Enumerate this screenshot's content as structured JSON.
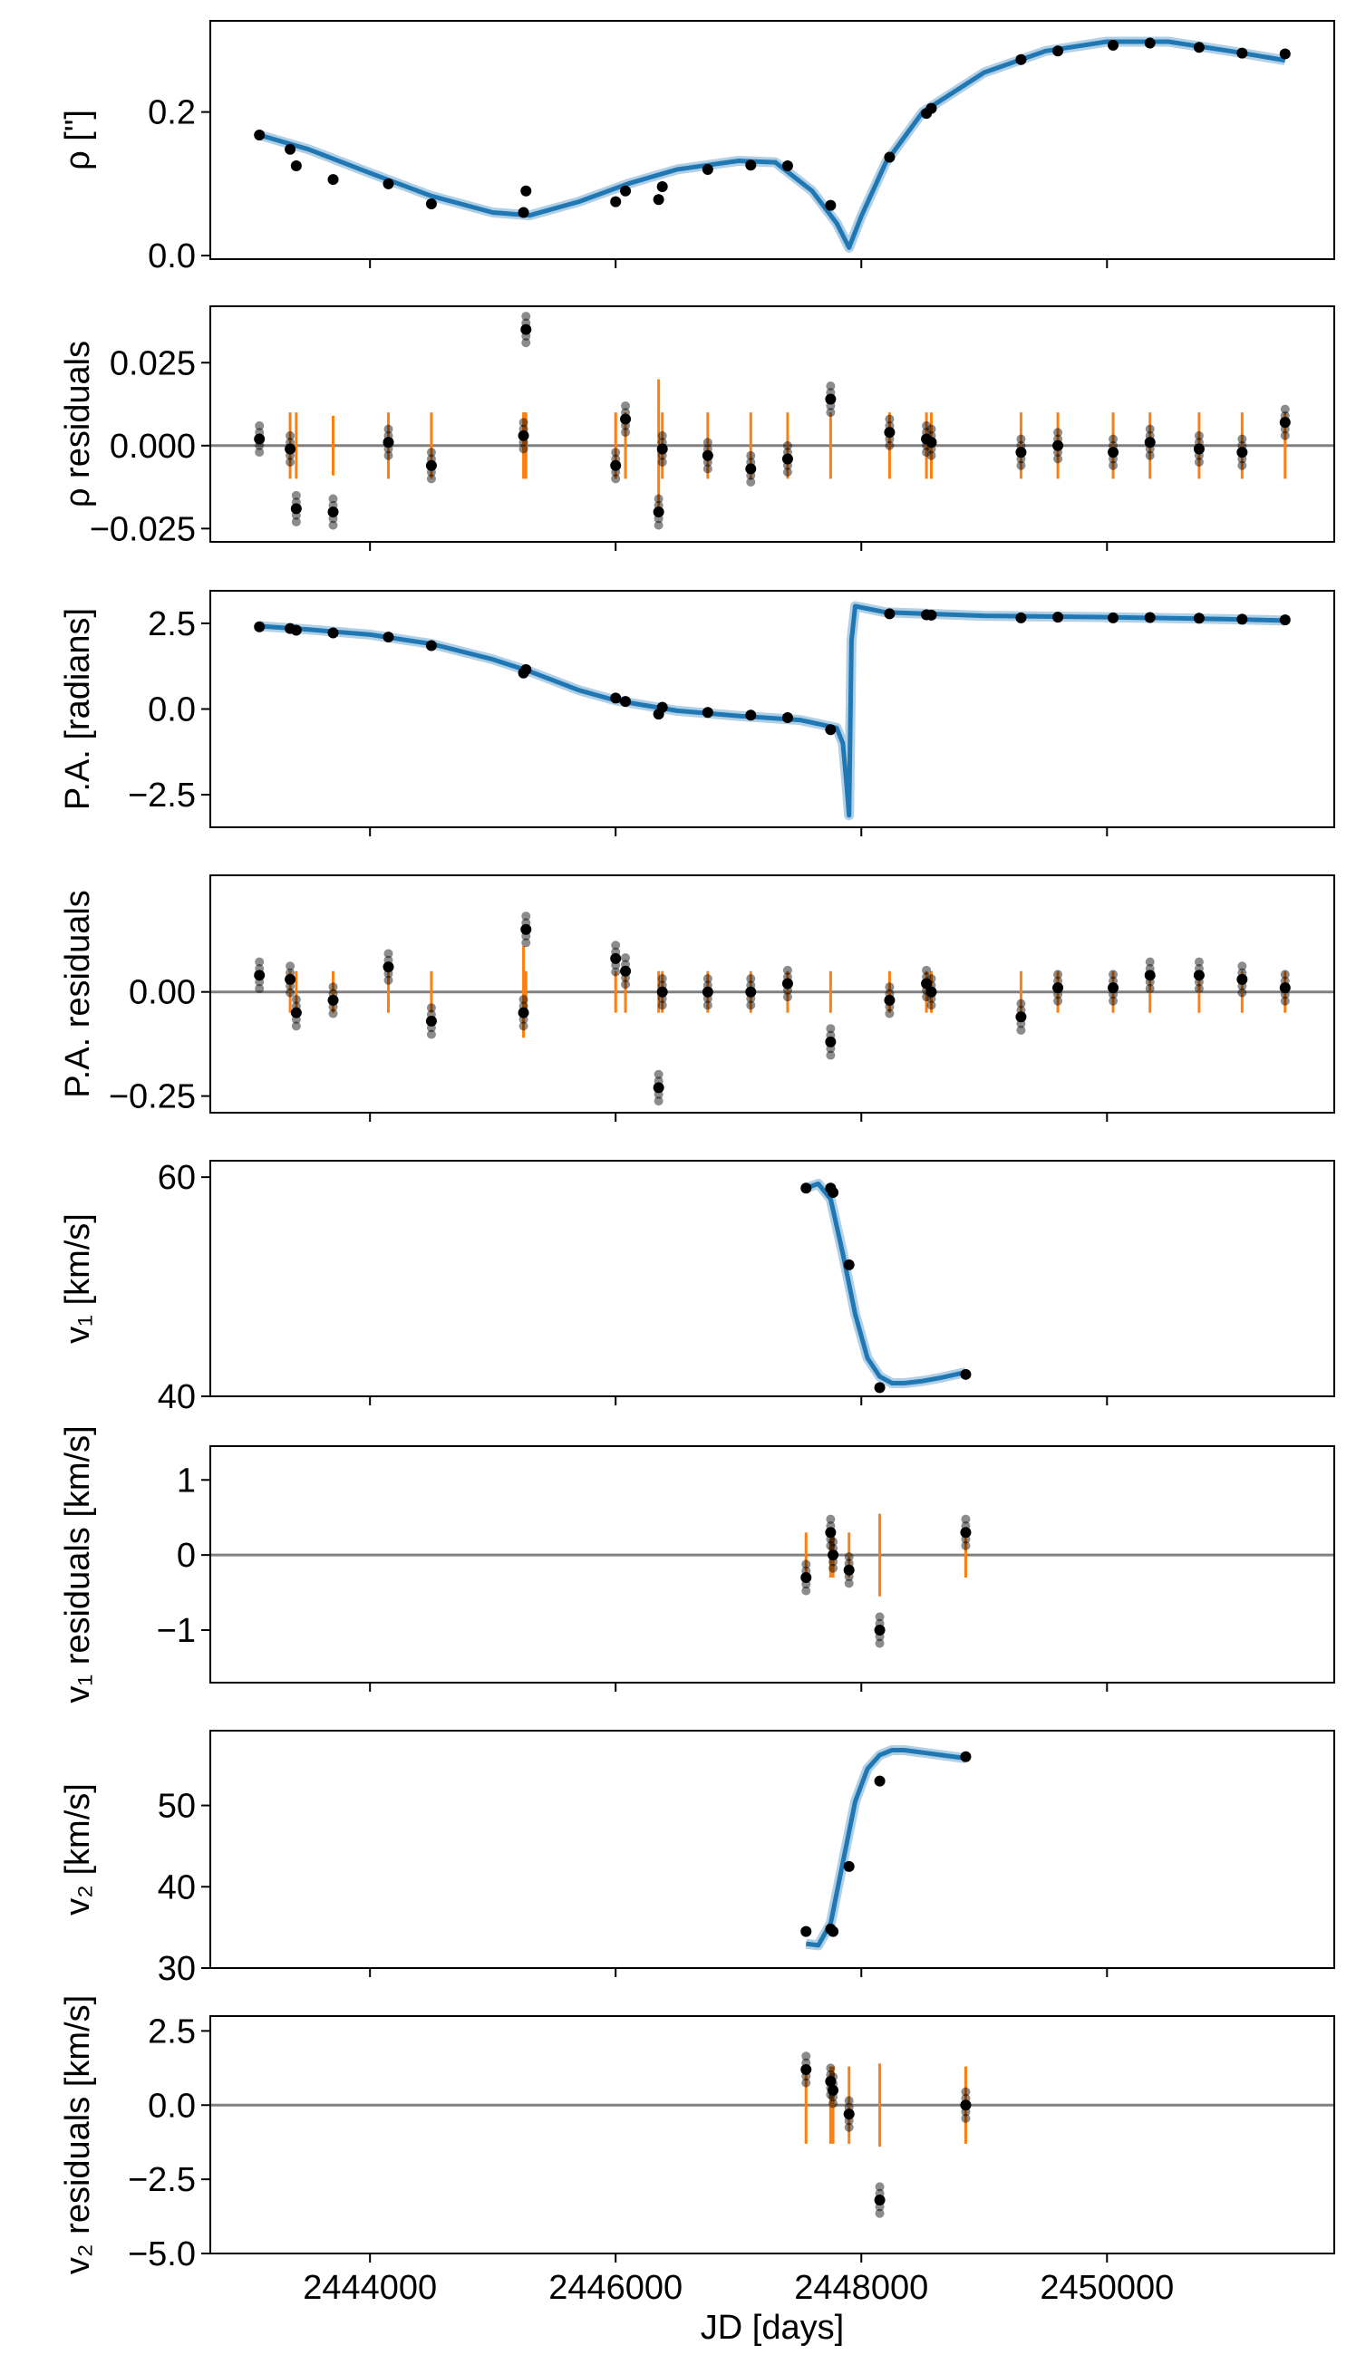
{
  "chart_data": [
    {
      "type": "scatter",
      "ylabel": "ρ [\"]",
      "ylim": [
        -0.005,
        0.327
      ],
      "yticks": [
        0.0,
        0.2
      ],
      "yticklabels": [
        "0.0",
        "0.2"
      ],
      "model_line": {
        "x": [
          2443100,
          2443500,
          2444000,
          2444500,
          2445000,
          2445300,
          2445700,
          2446100,
          2446500,
          2447000,
          2447300,
          2447600,
          2447800,
          2447900,
          2448000,
          2448200,
          2448500,
          2449000,
          2449500,
          2450000,
          2450500,
          2451000,
          2451450
        ],
        "y": [
          0.168,
          0.148,
          0.115,
          0.083,
          0.06,
          0.056,
          0.075,
          0.1,
          0.12,
          0.132,
          0.13,
          0.09,
          0.045,
          0.011,
          0.055,
          0.13,
          0.2,
          0.255,
          0.285,
          0.298,
          0.298,
          0.285,
          0.272
        ]
      },
      "points": {
        "x": [
          2443100,
          2443350,
          2443400,
          2443700,
          2444150,
          2444500,
          2445250,
          2445270,
          2446000,
          2446080,
          2446350,
          2446380,
          2446750,
          2447100,
          2447400,
          2447750,
          2448230,
          2448530,
          2448570,
          2449300,
          2449600,
          2450050,
          2450350,
          2450750,
          2451100,
          2451450
        ],
        "y": [
          0.168,
          0.148,
          0.125,
          0.106,
          0.1,
          0.072,
          0.06,
          0.09,
          0.075,
          0.09,
          0.078,
          0.096,
          0.12,
          0.126,
          0.125,
          0.07,
          0.137,
          0.198,
          0.205,
          0.273,
          0.285,
          0.293,
          0.296,
          0.29,
          0.282,
          0.281
        ]
      }
    },
    {
      "type": "scatter",
      "ylabel": "ρ residuals",
      "ylim": [
        -0.029,
        0.042
      ],
      "yticks": [
        -0.025,
        0.0,
        0.025
      ],
      "yticklabels": [
        "−0.025",
        "0.000",
        "0.025"
      ],
      "zero_line": true,
      "points": {
        "x": [
          2443100,
          2443350,
          2443400,
          2443700,
          2444150,
          2444500,
          2445250,
          2445270,
          2446000,
          2446080,
          2446350,
          2446380,
          2446750,
          2447100,
          2447400,
          2447750,
          2448230,
          2448530,
          2448570,
          2449300,
          2449600,
          2450050,
          2450350,
          2450750,
          2451100,
          2451450
        ],
        "y": [
          0.002,
          -0.001,
          -0.019,
          -0.02,
          0.001,
          -0.006,
          0.003,
          0.035,
          -0.006,
          0.008,
          -0.02,
          -0.001,
          -0.003,
          -0.007,
          -0.004,
          0.014,
          0.004,
          0.002,
          0.001,
          -0.002,
          0.0,
          -0.002,
          0.001,
          -0.001,
          -0.002,
          0.007
        ]
      },
      "error_bars": {
        "x": [
          2443350,
          2443400,
          2443700,
          2444150,
          2444500,
          2445250,
          2445270,
          2446000,
          2446080,
          2446350,
          2446380,
          2446750,
          2447100,
          2447400,
          2447750,
          2448230,
          2448530,
          2448570,
          2449300,
          2449600,
          2450050,
          2450350,
          2450750,
          2451100,
          2451450
        ],
        "yerr": [
          0.01,
          0.01,
          0.009,
          0.01,
          0.01,
          0.01,
          0.01,
          0.01,
          0.01,
          0.02,
          0.01,
          0.01,
          0.01,
          0.01,
          0.01,
          0.01,
          0.01,
          0.01,
          0.01,
          0.01,
          0.01,
          0.01,
          0.01,
          0.01,
          0.01
        ]
      }
    },
    {
      "type": "scatter",
      "ylabel": "P.A. [radians]",
      "ylim": [
        -3.45,
        3.45
      ],
      "yticks": [
        -2.5,
        0.0,
        2.5
      ],
      "yticklabels": [
        "−2.5",
        "0.0",
        "2.5"
      ],
      "model_line": {
        "x": [
          2443100,
          2443500,
          2444000,
          2444500,
          2445000,
          2445300,
          2445700,
          2446000,
          2446500,
          2447000,
          2447500,
          2447800,
          2447850,
          2447880,
          2447900,
          2447920,
          2447950,
          2448200,
          2449000,
          2450000,
          2451000,
          2451450
        ],
        "y": [
          2.42,
          2.32,
          2.17,
          1.9,
          1.45,
          1.1,
          0.55,
          0.25,
          -0.05,
          -0.2,
          -0.32,
          -0.55,
          -1.0,
          -2.2,
          -3.1,
          2.0,
          3.0,
          2.82,
          2.72,
          2.68,
          2.62,
          2.58
        ]
      },
      "points": {
        "x": [
          2443100,
          2443350,
          2443400,
          2443700,
          2444150,
          2444500,
          2445250,
          2445270,
          2446000,
          2446080,
          2446350,
          2446380,
          2446750,
          2447100,
          2447400,
          2447750,
          2448230,
          2448530,
          2448570,
          2449300,
          2449600,
          2450050,
          2450350,
          2450750,
          2451100,
          2451450
        ],
        "y": [
          2.4,
          2.35,
          2.3,
          2.22,
          2.1,
          1.85,
          1.05,
          1.15,
          0.32,
          0.22,
          -0.15,
          0.05,
          -0.1,
          -0.18,
          -0.25,
          -0.6,
          2.78,
          2.75,
          2.74,
          2.66,
          2.68,
          2.66,
          2.67,
          2.65,
          2.62,
          2.6
        ]
      }
    },
    {
      "type": "scatter",
      "ylabel": "P.A. residuals",
      "ylim": [
        -0.29,
        0.28
      ],
      "yticks": [
        -0.25,
        0.0
      ],
      "yticklabels": [
        "−0.25",
        "0.00"
      ],
      "zero_line": true,
      "points": {
        "x": [
          2443100,
          2443350,
          2443400,
          2443700,
          2444150,
          2444500,
          2445250,
          2445270,
          2446000,
          2446080,
          2446350,
          2446380,
          2446750,
          2447100,
          2447400,
          2447750,
          2448230,
          2448530,
          2448570,
          2449300,
          2449600,
          2450050,
          2450350,
          2450750,
          2451100,
          2451450
        ],
        "y": [
          0.04,
          0.03,
          -0.05,
          -0.02,
          0.06,
          -0.07,
          -0.05,
          0.15,
          0.08,
          0.05,
          -0.23,
          0.0,
          0.0,
          0.0,
          0.02,
          -0.12,
          -0.02,
          0.02,
          0.0,
          -0.06,
          0.01,
          0.01,
          0.04,
          0.04,
          0.03,
          0.01
        ]
      },
      "error_bars": {
        "x": [
          2443350,
          2443400,
          2443700,
          2444150,
          2444500,
          2445250,
          2445270,
          2446000,
          2446080,
          2446350,
          2446380,
          2446750,
          2447100,
          2447400,
          2447750,
          2448230,
          2448530,
          2448570,
          2449300,
          2449600,
          2450050,
          2450350,
          2450750,
          2451100,
          2451450
        ],
        "yerr": [
          0.05,
          0.05,
          0.05,
          0.05,
          0.05,
          0.11,
          0.05,
          0.05,
          0.05,
          0.05,
          0.05,
          0.05,
          0.05,
          0.05,
          0.05,
          0.05,
          0.05,
          0.05,
          0.05,
          0.05,
          0.05,
          0.05,
          0.05,
          0.05,
          0.05
        ]
      }
    },
    {
      "type": "scatter",
      "ylabel": "v₁ [km/s]",
      "ylim": [
        40.0,
        61.5
      ],
      "yticks": [
        40,
        60
      ],
      "yticklabels": [
        "40",
        "60"
      ],
      "model_line": {
        "x": [
          2447550,
          2447650,
          2447750,
          2447850,
          2447950,
          2448050,
          2448150,
          2448250,
          2448350,
          2448500,
          2448650,
          2448850
        ],
        "y": [
          59.0,
          59.4,
          58.0,
          53.0,
          47.5,
          43.5,
          41.8,
          41.2,
          41.2,
          41.4,
          41.7,
          42.2
        ]
      },
      "points": {
        "x": [
          2447550,
          2447750,
          2447770,
          2447900,
          2448150,
          2448850
        ],
        "y": [
          59.0,
          59.0,
          58.6,
          52.0,
          40.8,
          42.0
        ]
      }
    },
    {
      "type": "scatter",
      "ylabel": "v₁ residuals [km/s]",
      "ylim": [
        -1.7,
        1.45
      ],
      "yticks": [
        -1,
        0,
        1
      ],
      "yticklabels": [
        "−1",
        "0",
        "1"
      ],
      "zero_line": true,
      "points": {
        "x": [
          2447550,
          2447750,
          2447770,
          2447900,
          2448150,
          2448850
        ],
        "y": [
          -0.3,
          0.3,
          0.0,
          -0.2,
          -1.0,
          0.3
        ]
      },
      "error_bars": {
        "x": [
          2447550,
          2447750,
          2447770,
          2447900,
          2448150,
          2448850
        ],
        "yerr": [
          0.3,
          0.3,
          0.3,
          0.3,
          0.55,
          0.3
        ]
      }
    },
    {
      "type": "scatter",
      "ylabel": "v₂ [km/s]",
      "ylim": [
        30.0,
        59.2
      ],
      "yticks": [
        30,
        40,
        50
      ],
      "yticklabels": [
        "30",
        "40",
        "50"
      ],
      "model_line": {
        "x": [
          2447550,
          2447650,
          2447750,
          2447850,
          2447950,
          2448050,
          2448150,
          2448250,
          2448350,
          2448500,
          2448650,
          2448850
        ],
        "y": [
          33.0,
          32.8,
          35.5,
          43.0,
          50.5,
          54.5,
          56.2,
          56.8,
          56.8,
          56.5,
          56.2,
          55.8
        ]
      },
      "points": {
        "x": [
          2447550,
          2447750,
          2447770,
          2447900,
          2448150,
          2448850
        ],
        "y": [
          34.5,
          34.8,
          34.5,
          42.5,
          53.0,
          56.0
        ]
      }
    },
    {
      "type": "scatter",
      "ylabel": "v₂ residuals [km/s]",
      "ylim": [
        -5.0,
        3.0
      ],
      "yticks": [
        -5.0,
        -2.5,
        0.0,
        2.5
      ],
      "yticklabels": [
        "−5.0",
        "−2.5",
        "0.0",
        "2.5"
      ],
      "zero_line": true,
      "xlabel": "JD [days]",
      "points": {
        "x": [
          2447550,
          2447750,
          2447770,
          2447900,
          2448150,
          2448850
        ],
        "y": [
          1.2,
          0.8,
          0.5,
          -0.3,
          -3.2,
          0.0
        ]
      },
      "error_bars": {
        "x": [
          2447550,
          2447750,
          2447770,
          2447900,
          2448150,
          2448850
        ],
        "yerr": [
          1.3,
          1.3,
          1.3,
          1.3,
          1.4,
          1.3
        ]
      }
    }
  ],
  "x_axis": {
    "xlabel": "JD [days]",
    "xlim": [
      2442700,
      2451850
    ],
    "xticks": [
      2444000,
      2446000,
      2448000,
      2450000
    ],
    "xticklabels": [
      "2444000",
      "2446000",
      "2448000",
      "2450000"
    ]
  },
  "colors": {
    "model": "#1f77b4",
    "error_bar": "#ff7f0e",
    "points": "#000000",
    "zero_line": "#808080"
  }
}
